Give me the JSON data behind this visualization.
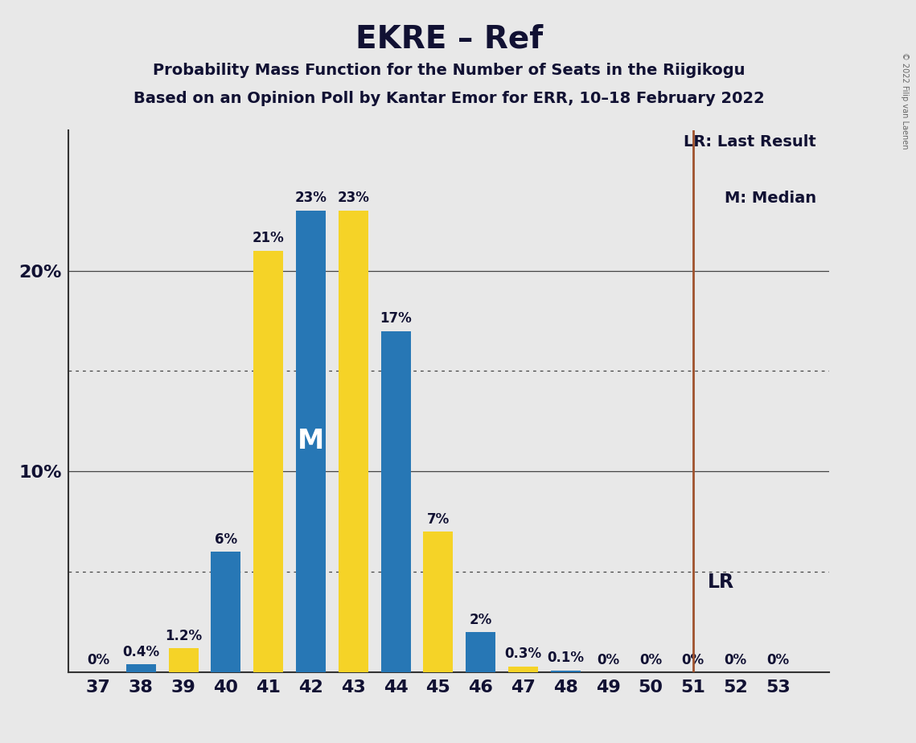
{
  "title": "EKRE – Ref",
  "subtitle1": "Probability Mass Function for the Number of Seats in the Riigikogu",
  "subtitle2": "Based on an Opinion Poll by Kantar Emor for ERR, 10–18 February 2022",
  "copyright": "© 2022 Filip van Laenen",
  "seats": [
    37,
    38,
    39,
    40,
    41,
    42,
    43,
    44,
    45,
    46,
    47,
    48,
    49,
    50,
    51,
    52,
    53
  ],
  "colors": [
    "blue",
    "blue",
    "yellow",
    "blue",
    "yellow",
    "blue",
    "yellow",
    "blue",
    "yellow",
    "blue",
    "yellow",
    "blue",
    "yellow",
    "blue",
    "blue",
    "blue",
    "blue"
  ],
  "values": [
    0.0,
    0.4,
    1.2,
    6.0,
    21.0,
    23.0,
    23.0,
    17.0,
    7.0,
    2.0,
    0.3,
    0.1,
    0.0,
    0.0,
    0.0,
    0.0,
    0.0
  ],
  "labels": [
    "0%",
    "0.4%",
    "1.2%",
    "6%",
    "21%",
    "23%",
    "23%",
    "17%",
    "7%",
    "2%",
    "0.3%",
    "0.1%",
    "0%",
    "0%",
    "0%",
    "0%",
    "0%"
  ],
  "median_seat": 42,
  "median_seat_index": 5,
  "lr_seat": 51,
  "lr_label": "LR",
  "lr_legend": "LR: Last Result",
  "m_legend": "M: Median",
  "bar_width": 0.7,
  "blue_color": "#2777B5",
  "yellow_color": "#F5D327",
  "lr_color": "#A0522D",
  "background_color": "#E8E8E8",
  "plot_bg_color": "#E8E8E8",
  "ylim_max": 27,
  "label_fontsize": 12,
  "tick_fontsize": 16,
  "title_fontsize": 28,
  "subtitle_fontsize": 14
}
